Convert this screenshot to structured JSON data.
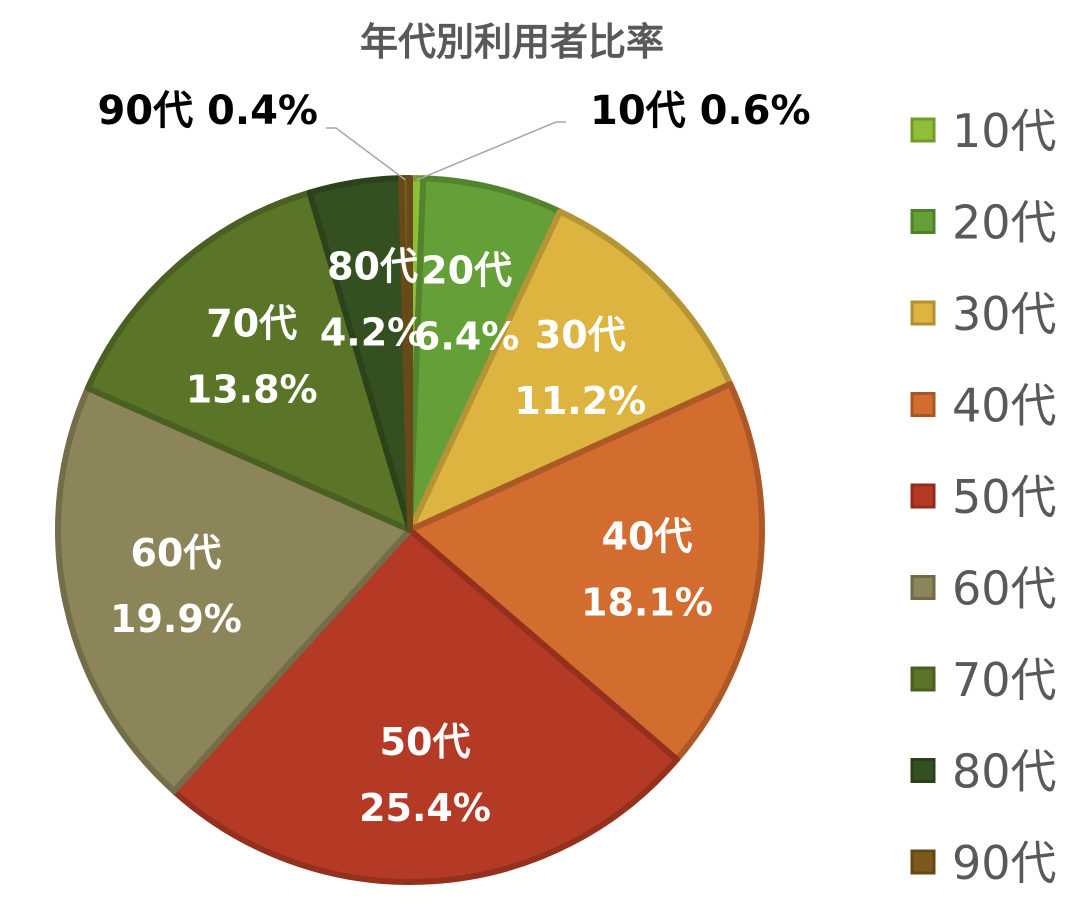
{
  "chart_data": {
    "type": "pie",
    "title": "年代別利用者比率",
    "legend_position": "right",
    "categories": [
      "10代",
      "20代",
      "30代",
      "40代",
      "50代",
      "60代",
      "70代",
      "80代",
      "90代"
    ],
    "values": [
      0.6,
      6.4,
      11.2,
      18.1,
      25.4,
      19.9,
      13.8,
      4.2,
      0.4
    ],
    "value_labels": [
      "0.6%",
      "6.4%",
      "11.2%",
      "18.1%",
      "25.4%",
      "19.9%",
      "13.8%",
      "4.2%",
      "0.4%"
    ],
    "colors": [
      "#8fbf3a",
      "#64a037",
      "#dcb43f",
      "#d36c2f",
      "#b43a25",
      "#8c8559",
      "#5a7428",
      "#345020",
      "#7d5a1c"
    ],
    "start_angle_deg": 0,
    "direction": "clockwise"
  }
}
